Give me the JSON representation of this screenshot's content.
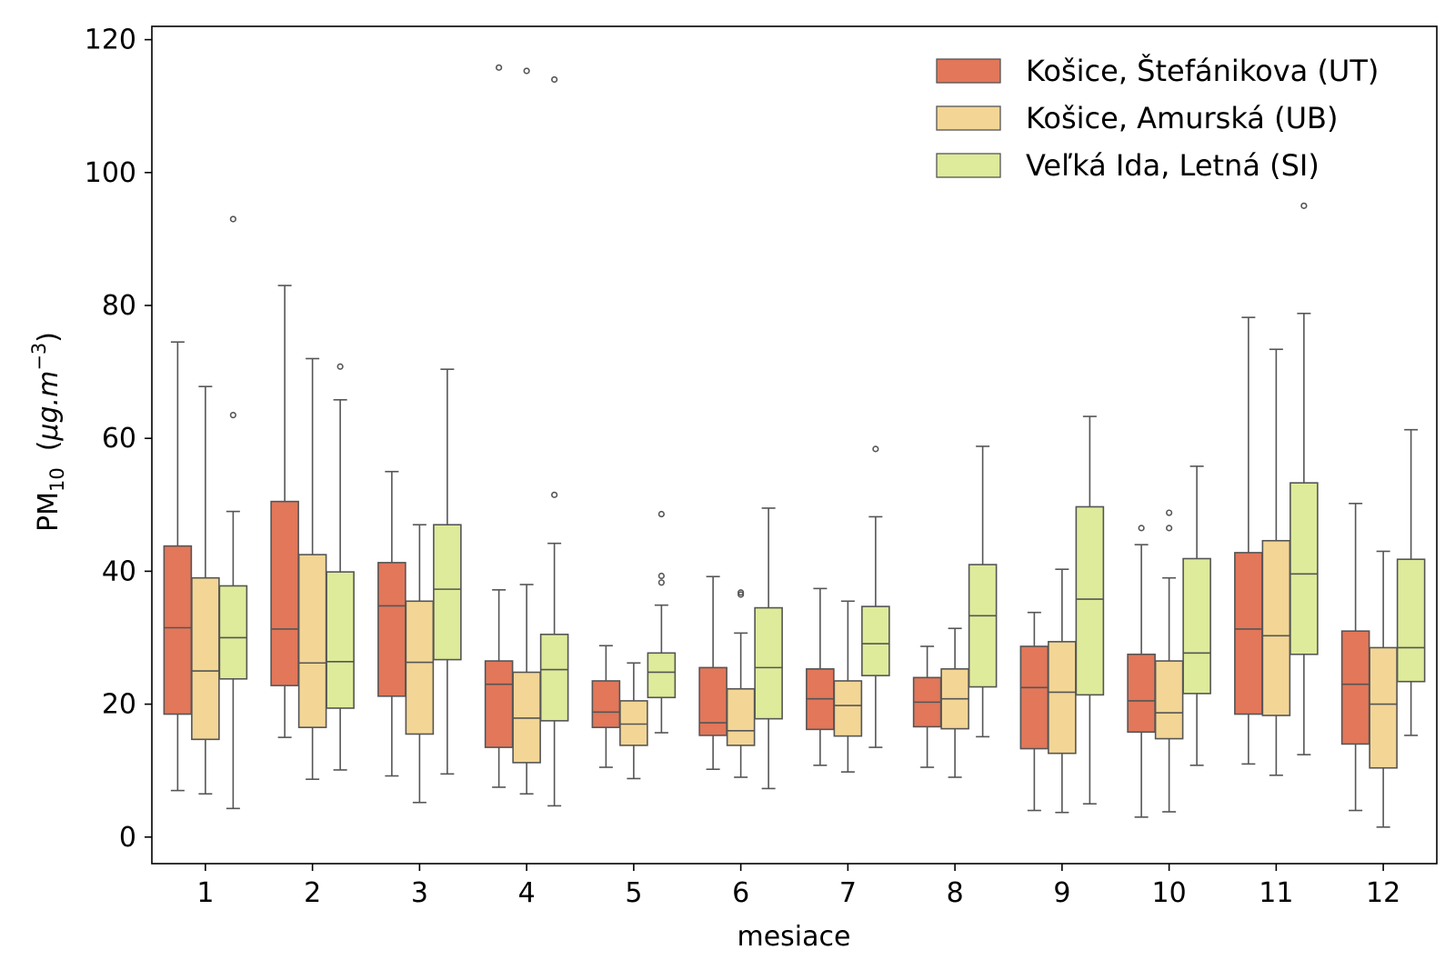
{
  "chart_data": {
    "type": "box",
    "title": "",
    "xlabel": "mesiace",
    "ylabel_main": "PM",
    "ylabel_sub": "10",
    "ylabel_unit_open": "(",
    "ylabel_unit_mu": "μ",
    "ylabel_unit_text": "g.m",
    "ylabel_unit_exp": "−3",
    "ylabel_unit_close": ")",
    "ylim": [
      -4,
      122
    ],
    "yticks": [
      "0",
      "20",
      "40",
      "60",
      "80",
      "100",
      "120"
    ],
    "ytick_values": [
      0,
      20,
      40,
      60,
      80,
      100,
      120
    ],
    "categories": [
      "1",
      "2",
      "3",
      "4",
      "5",
      "6",
      "7",
      "8",
      "9",
      "10",
      "11",
      "12"
    ],
    "legend_position": "top-right",
    "series": [
      {
        "name": "Košice, Štefánikova (UT)",
        "color": "#E2775A",
        "boxes": [
          {
            "whislo": 7.0,
            "q1": 18.5,
            "med": 31.5,
            "q3": 43.8,
            "whishi": 74.5,
            "fliers": []
          },
          {
            "whislo": 15.0,
            "q1": 22.8,
            "med": 31.3,
            "q3": 50.5,
            "whishi": 83.0,
            "fliers": []
          },
          {
            "whislo": 9.2,
            "q1": 21.2,
            "med": 34.8,
            "q3": 41.3,
            "whishi": 55.0,
            "fliers": []
          },
          {
            "whislo": 7.5,
            "q1": 13.5,
            "med": 23.0,
            "q3": 26.5,
            "whishi": 37.2,
            "fliers": [
              115.8
            ]
          },
          {
            "whislo": 10.5,
            "q1": 16.5,
            "med": 18.8,
            "q3": 23.5,
            "whishi": 28.8,
            "fliers": []
          },
          {
            "whislo": 10.2,
            "q1": 15.3,
            "med": 17.2,
            "q3": 25.5,
            "whishi": 39.2,
            "fliers": []
          },
          {
            "whislo": 10.8,
            "q1": 16.2,
            "med": 20.8,
            "q3": 25.3,
            "whishi": 37.4,
            "fliers": []
          },
          {
            "whislo": 10.5,
            "q1": 16.6,
            "med": 20.3,
            "q3": 24.0,
            "whishi": 28.7,
            "fliers": []
          },
          {
            "whislo": 4.0,
            "q1": 13.3,
            "med": 22.5,
            "q3": 28.7,
            "whishi": 33.8,
            "fliers": []
          },
          {
            "whislo": 3.0,
            "q1": 15.8,
            "med": 20.5,
            "q3": 27.5,
            "whishi": 44.0,
            "fliers": [
              46.5
            ]
          },
          {
            "whislo": 11.0,
            "q1": 18.5,
            "med": 31.3,
            "q3": 42.8,
            "whishi": 78.2,
            "fliers": []
          },
          {
            "whislo": 4.0,
            "q1": 14.0,
            "med": 23.0,
            "q3": 31.0,
            "whishi": 50.2,
            "fliers": []
          }
        ]
      },
      {
        "name": "Košice, Amurská (UB)",
        "color": "#F3D695",
        "boxes": [
          {
            "whislo": 6.5,
            "q1": 14.7,
            "med": 25.0,
            "q3": 39.0,
            "whishi": 67.8,
            "fliers": []
          },
          {
            "whislo": 8.7,
            "q1": 16.5,
            "med": 26.2,
            "q3": 42.5,
            "whishi": 72.0,
            "fliers": []
          },
          {
            "whislo": 5.2,
            "q1": 15.5,
            "med": 26.3,
            "q3": 35.5,
            "whishi": 47.0,
            "fliers": []
          },
          {
            "whislo": 6.5,
            "q1": 11.2,
            "med": 17.9,
            "q3": 24.8,
            "whishi": 38.0,
            "fliers": [
              115.3
            ]
          },
          {
            "whislo": 8.8,
            "q1": 13.8,
            "med": 17.0,
            "q3": 20.5,
            "whishi": 26.2,
            "fliers": []
          },
          {
            "whislo": 9.0,
            "q1": 13.8,
            "med": 16.0,
            "q3": 22.3,
            "whishi": 30.7,
            "fliers": [
              36.5,
              36.8
            ]
          },
          {
            "whislo": 9.8,
            "q1": 15.2,
            "med": 19.8,
            "q3": 23.5,
            "whishi": 35.5,
            "fliers": []
          },
          {
            "whislo": 9.0,
            "q1": 16.3,
            "med": 20.8,
            "q3": 25.3,
            "whishi": 31.4,
            "fliers": []
          },
          {
            "whislo": 3.7,
            "q1": 12.6,
            "med": 21.8,
            "q3": 29.4,
            "whishi": 40.3,
            "fliers": []
          },
          {
            "whislo": 3.8,
            "q1": 14.8,
            "med": 18.7,
            "q3": 26.5,
            "whishi": 39.0,
            "fliers": [
              46.5,
              48.8
            ]
          },
          {
            "whislo": 9.3,
            "q1": 18.3,
            "med": 30.3,
            "q3": 44.6,
            "whishi": 73.4,
            "fliers": []
          },
          {
            "whislo": 1.5,
            "q1": 10.4,
            "med": 20.0,
            "q3": 28.5,
            "whishi": 43.0,
            "fliers": []
          }
        ]
      },
      {
        "name": "Veľká Ida, Letná (SI)",
        "color": "#DEEB9A",
        "boxes": [
          {
            "whislo": 4.3,
            "q1": 23.8,
            "med": 30.0,
            "q3": 37.8,
            "whishi": 49.0,
            "fliers": [
              63.5,
              93.0
            ]
          },
          {
            "whislo": 10.1,
            "q1": 19.4,
            "med": 26.4,
            "q3": 39.9,
            "whishi": 65.8,
            "fliers": [
              70.8
            ]
          },
          {
            "whislo": 9.5,
            "q1": 26.7,
            "med": 37.3,
            "q3": 47.0,
            "whishi": 70.4,
            "fliers": []
          },
          {
            "whislo": 4.7,
            "q1": 17.5,
            "med": 25.2,
            "q3": 30.5,
            "whishi": 44.2,
            "fliers": [
              51.5,
              114.0
            ]
          },
          {
            "whislo": 15.7,
            "q1": 21.0,
            "med": 24.8,
            "q3": 27.7,
            "whishi": 34.9,
            "fliers": [
              38.3,
              39.3,
              48.6
            ]
          },
          {
            "whislo": 7.3,
            "q1": 17.8,
            "med": 25.5,
            "q3": 34.5,
            "whishi": 49.5,
            "fliers": []
          },
          {
            "whislo": 13.5,
            "q1": 24.3,
            "med": 29.1,
            "q3": 34.7,
            "whishi": 48.2,
            "fliers": [
              58.4
            ]
          },
          {
            "whislo": 15.1,
            "q1": 22.6,
            "med": 33.3,
            "q3": 41.0,
            "whishi": 58.8,
            "fliers": []
          },
          {
            "whislo": 5.0,
            "q1": 21.4,
            "med": 35.8,
            "q3": 49.7,
            "whishi": 63.3,
            "fliers": []
          },
          {
            "whislo": 10.8,
            "q1": 21.6,
            "med": 27.7,
            "q3": 41.9,
            "whishi": 55.8,
            "fliers": []
          },
          {
            "whislo": 12.4,
            "q1": 27.5,
            "med": 39.6,
            "q3": 53.3,
            "whishi": 78.8,
            "fliers": [
              95.0
            ]
          },
          {
            "whislo": 15.3,
            "q1": 23.4,
            "med": 28.5,
            "q3": 41.8,
            "whishi": 61.3,
            "fliers": []
          }
        ]
      }
    ]
  }
}
